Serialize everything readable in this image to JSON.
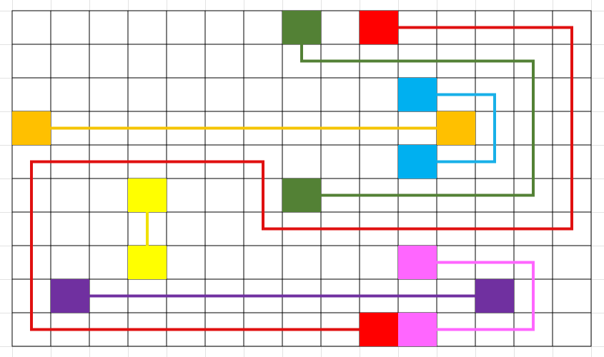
{
  "grid": {
    "rows": 10,
    "cols": 15
  },
  "pairs": [
    {
      "color": "#538135",
      "line": "#538135",
      "cells": [
        [
          0,
          7
        ],
        [
          5,
          7
        ]
      ],
      "path": [
        [
          0,
          7
        ],
        [
          1,
          7
        ],
        [
          1,
          13
        ],
        [
          5,
          13
        ],
        [
          5,
          7
        ]
      ]
    },
    {
      "color": "#ff0000",
      "line": "#e01010",
      "cells": [
        [
          0,
          9
        ],
        [
          9,
          9
        ]
      ],
      "path": [
        [
          0,
          9
        ],
        [
          0,
          14
        ],
        [
          6,
          14
        ],
        [
          6,
          6
        ],
        [
          4,
          6
        ],
        [
          4,
          0
        ],
        [
          9,
          0
        ],
        [
          9,
          9
        ]
      ]
    },
    {
      "color": "#00b0f0",
      "line": "#18b0e8",
      "cells": [
        [
          2,
          10
        ],
        [
          4,
          10
        ]
      ],
      "path": [
        [
          2,
          10
        ],
        [
          2,
          12
        ],
        [
          4,
          12
        ],
        [
          4,
          10
        ]
      ]
    },
    {
      "color": "#ffc000",
      "line": "#f5c400",
      "cells": [
        [
          3,
          0
        ],
        [
          3,
          11
        ]
      ],
      "path": [
        [
          3,
          0
        ],
        [
          3,
          11
        ]
      ]
    },
    {
      "color": "#ffff00",
      "line": "#f0e000",
      "cells": [
        [
          5,
          3
        ],
        [
          7,
          3
        ]
      ],
      "path": [
        [
          5,
          3
        ],
        [
          7,
          3
        ]
      ]
    },
    {
      "color": "#7030a0",
      "line": "#7030a0",
      "cells": [
        [
          8,
          1
        ],
        [
          8,
          12
        ]
      ],
      "path": [
        [
          8,
          1
        ],
        [
          8,
          12
        ]
      ]
    },
    {
      "color": "#ff66ff",
      "line": "#ff66ff",
      "cells": [
        [
          7,
          10
        ],
        [
          9,
          10
        ]
      ],
      "path": [
        [
          7,
          10
        ],
        [
          7,
          13
        ],
        [
          9,
          13
        ],
        [
          9,
          10
        ]
      ]
    }
  ]
}
